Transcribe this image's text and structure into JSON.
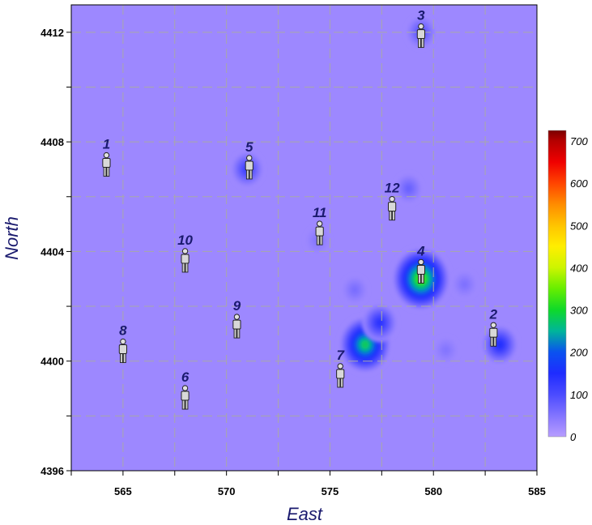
{
  "chart_data": {
    "type": "heatmap",
    "title": "",
    "xlabel": "East",
    "ylabel": "North",
    "xlim": [
      562.5,
      585
    ],
    "ylim": [
      4396,
      4413
    ],
    "x_ticks": [
      565,
      570,
      575,
      580,
      585
    ],
    "y_ticks": [
      4396,
      4400,
      4404,
      4408,
      4412
    ],
    "x_tick_labels": [
      "565",
      "570",
      "575",
      "580",
      "585"
    ],
    "y_tick_labels": [
      "4396",
      "4400",
      "4404",
      "4408",
      "4412"
    ],
    "grid": true,
    "colorbar": {
      "min": 0,
      "max": 725,
      "ticks": [
        0,
        100,
        200,
        300,
        400,
        500,
        600,
        700
      ],
      "tick_labels": [
        "0",
        "100",
        "200",
        "300",
        "400",
        "500",
        "600",
        "700"
      ]
    },
    "background_value": 25,
    "hotspots": [
      {
        "x": 579.4,
        "y": 4403.0,
        "value": 330
      },
      {
        "x": 576.7,
        "y": 4400.6,
        "value": 280
      },
      {
        "x": 583.2,
        "y": 4400.6,
        "value": 150
      },
      {
        "x": 577.4,
        "y": 4401.4,
        "value": 140
      },
      {
        "x": 571.0,
        "y": 4407.0,
        "value": 120
      },
      {
        "x": 579.4,
        "y": 4412.0,
        "value": 95
      },
      {
        "x": 578.8,
        "y": 4406.3,
        "value": 75
      },
      {
        "x": 576.2,
        "y": 4402.6,
        "value": 60
      },
      {
        "x": 581.5,
        "y": 4402.8,
        "value": 55
      },
      {
        "x": 574.4,
        "y": 4404.4,
        "value": 50
      },
      {
        "x": 580.6,
        "y": 4400.4,
        "value": 50
      }
    ],
    "sites": [
      {
        "label": "1",
        "x": 564.2,
        "y": 4407.1
      },
      {
        "label": "2",
        "x": 582.9,
        "y": 4400.9
      },
      {
        "label": "3",
        "x": 579.4,
        "y": 4411.8
      },
      {
        "label": "4",
        "x": 579.4,
        "y": 4403.2
      },
      {
        "label": "5",
        "x": 571.1,
        "y": 4407.0
      },
      {
        "label": "6",
        "x": 568.0,
        "y": 4398.6
      },
      {
        "label": "7",
        "x": 575.5,
        "y": 4399.4
      },
      {
        "label": "8",
        "x": 565.0,
        "y": 4400.3
      },
      {
        "label": "9",
        "x": 570.5,
        "y": 4401.2
      },
      {
        "label": "10",
        "x": 568.0,
        "y": 4403.6
      },
      {
        "label": "11",
        "x": 574.5,
        "y": 4404.6
      },
      {
        "label": "12",
        "x": 578.0,
        "y": 4405.5
      }
    ]
  }
}
